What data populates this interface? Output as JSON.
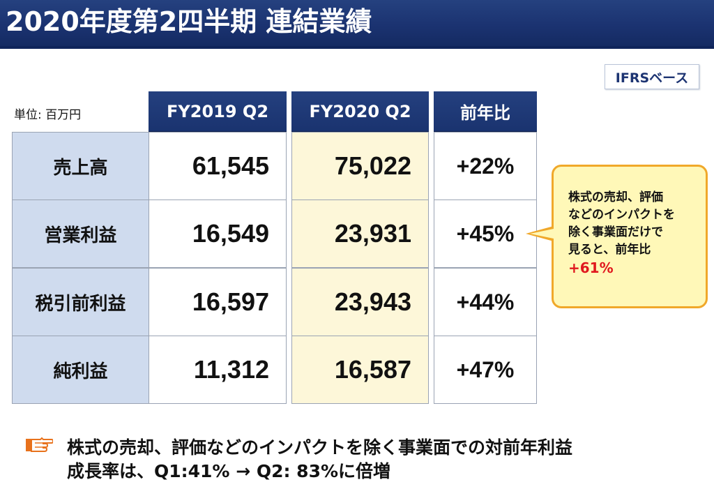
{
  "header": {
    "title": "2020年度第2四半期 連結業績"
  },
  "badge": {
    "text": "IFRSベース"
  },
  "table": {
    "unit": "単位: 百万円",
    "columns": [
      "FY2019 Q2",
      "FY2020 Q2",
      "前年比"
    ],
    "rows": [
      {
        "label": "売上高",
        "fy2019": "61,545",
        "fy2020": "75,022",
        "yoy": "+22%"
      },
      {
        "label": "営業利益",
        "fy2019": "16,549",
        "fy2020": "23,931",
        "yoy": "+45%"
      },
      {
        "label": "税引前利益",
        "fy2019": "16,597",
        "fy2020": "23,943",
        "yoy": "+44%"
      },
      {
        "label": "純利益",
        "fy2019": "11,312",
        "fy2020": "16,587",
        "yoy": "+47%"
      }
    ]
  },
  "callout": {
    "lines": [
      "株式の売却、評価",
      "などのインパクトを",
      "除く事業面だけで",
      "見ると、前年比"
    ],
    "highlight": "+61%"
  },
  "note": {
    "icon": "pointing-hand-icon",
    "line1": "株式の売却、評価などのインパクトを除く事業面での対前年利益",
    "line2": "成長率は、Q1:41% → Q2: 83%に倍増"
  },
  "colors": {
    "header_navy": "#1b3371",
    "label_blue": "#cfdbee",
    "fy2020_cream": "#fdf7d9",
    "callout_border": "#f0a82a",
    "callout_fill": "#fff8b8",
    "highlight_red": "#e0181e",
    "icon_orange": "#e8721c"
  }
}
